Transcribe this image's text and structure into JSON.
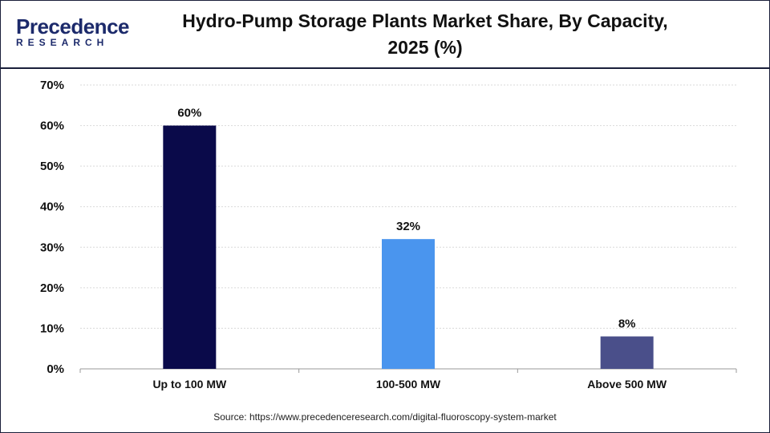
{
  "logo": {
    "word": "Precedence",
    "sub": "RESEARCH"
  },
  "chart_data": {
    "type": "bar",
    "title_line1": "Hydro-Pump Storage Plants Market Share, By Capacity,",
    "title_line2": "2025 (%)",
    "xlabel": "",
    "ylabel": "",
    "categories": [
      "Up to 100 MW",
      "100-500 MW",
      "Above 500 MW"
    ],
    "values": [
      60,
      32,
      8
    ],
    "data_labels": [
      "60%",
      "32%",
      "8%"
    ],
    "bar_colors": [
      "#0a0a4a",
      "#4a95ee",
      "#4a4f8a"
    ],
    "ylim": [
      0,
      70
    ],
    "yticks": [
      0,
      10,
      20,
      30,
      40,
      50,
      60,
      70
    ],
    "ytick_labels": [
      "0%",
      "10%",
      "20%",
      "30%",
      "40%",
      "50%",
      "60%",
      "70%"
    ],
    "grid": true,
    "legend": "none"
  },
  "source": "Source: https://www.precedenceresearch.com/digital-fluoroscopy-system-market"
}
